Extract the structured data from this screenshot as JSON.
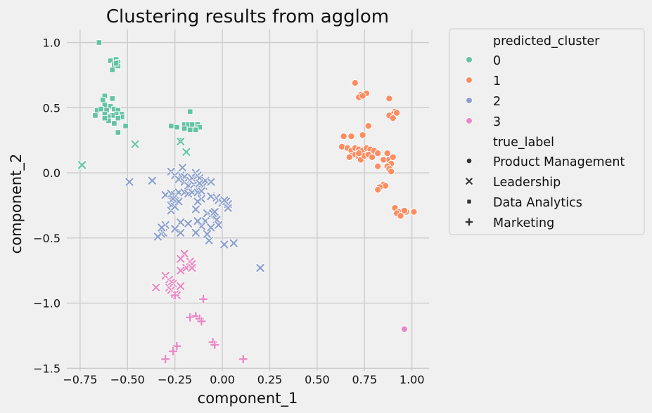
{
  "chart_data": {
    "type": "scatter",
    "title": "Clustering results from agglom",
    "xlabel": "component_1",
    "ylabel": "component_2",
    "xlim": [
      -0.82,
      1.09
    ],
    "ylim": [
      -1.52,
      1.1
    ],
    "grid": true,
    "legend_placement": "outside-right",
    "x_ticks": [
      -0.75,
      -0.5,
      -0.25,
      0.0,
      0.25,
      0.5,
      0.75,
      1.0
    ],
    "x_tick_labels": [
      "−0.75",
      "−0.50",
      "−0.25",
      "0.00",
      "0.25",
      "0.50",
      "0.75",
      "1.00"
    ],
    "y_ticks": [
      1.0,
      0.5,
      0.0,
      -0.5,
      -1.0,
      -1.5
    ],
    "y_tick_labels": [
      "1.0",
      "0.5",
      "0.0",
      "−0.5",
      "−1.0",
      "−1.5"
    ],
    "legend": {
      "hue_title": "predicted_cluster",
      "hue_entries": [
        {
          "label": "0",
          "color": "#66c2a5"
        },
        {
          "label": "1",
          "color": "#fc8d62"
        },
        {
          "label": "2",
          "color": "#8da0cb"
        },
        {
          "label": "3",
          "color": "#e78ac3"
        }
      ],
      "style_title": "true_label",
      "style_entries": [
        {
          "label": "Product Management",
          "marker": "circle"
        },
        {
          "label": "Leadership",
          "marker": "x"
        },
        {
          "label": "Data Analytics",
          "marker": "square"
        },
        {
          "label": "Marketing",
          "marker": "plus"
        }
      ]
    },
    "series": [
      {
        "cluster": "0",
        "marker": "square",
        "color": "#66c2a5",
        "points": [
          [
            -0.65,
            1.0
          ],
          [
            -0.59,
            0.86
          ],
          [
            -0.56,
            0.87
          ],
          [
            -0.55,
            0.85
          ],
          [
            -0.57,
            0.83
          ],
          [
            -0.55,
            0.82
          ],
          [
            -0.56,
            0.84
          ],
          [
            -0.58,
            0.79
          ],
          [
            -0.62,
            0.59
          ],
          [
            -0.63,
            0.56
          ],
          [
            -0.58,
            0.57
          ],
          [
            -0.62,
            0.52
          ],
          [
            -0.59,
            0.51
          ],
          [
            -0.66,
            0.48
          ],
          [
            -0.64,
            0.49
          ],
          [
            -0.61,
            0.48
          ],
          [
            -0.57,
            0.49
          ],
          [
            -0.55,
            0.48
          ],
          [
            -0.53,
            0.45
          ],
          [
            -0.53,
            0.43
          ],
          [
            -0.56,
            0.45
          ],
          [
            -0.58,
            0.44
          ],
          [
            -0.6,
            0.43
          ],
          [
            -0.62,
            0.45
          ],
          [
            -0.67,
            0.44
          ],
          [
            -0.6,
            0.4
          ],
          [
            -0.57,
            0.38
          ],
          [
            -0.55,
            0.42
          ],
          [
            -0.51,
            0.36
          ],
          [
            -0.55,
            0.31
          ],
          [
            -0.62,
            0.42
          ],
          [
            -0.17,
            0.47
          ],
          [
            -0.27,
            0.36
          ],
          [
            -0.24,
            0.35
          ],
          [
            -0.2,
            0.37
          ],
          [
            -0.18,
            0.37
          ],
          [
            -0.16,
            0.37
          ],
          [
            -0.13,
            0.37
          ],
          [
            -0.12,
            0.35
          ],
          [
            -0.14,
            0.33
          ],
          [
            -0.17,
            0.33
          ],
          [
            -0.2,
            0.34
          ],
          [
            -0.22,
            0.25
          ]
        ]
      },
      {
        "cluster": "0",
        "marker": "x",
        "color": "#66c2a5",
        "points": [
          [
            -0.46,
            0.22
          ],
          [
            -0.22,
            0.24
          ],
          [
            -0.19,
            0.16
          ],
          [
            -0.74,
            0.06
          ]
        ]
      },
      {
        "cluster": "1",
        "marker": "circle",
        "color": "#fc8d62",
        "points": [
          [
            0.7,
            0.69
          ],
          [
            0.76,
            0.61
          ],
          [
            0.73,
            0.6
          ],
          [
            0.72,
            0.58
          ],
          [
            0.74,
            0.59
          ],
          [
            0.88,
            0.57
          ],
          [
            0.91,
            0.47
          ],
          [
            0.9,
            0.45
          ],
          [
            0.92,
            0.46
          ],
          [
            0.89,
            0.43
          ],
          [
            0.88,
            0.44
          ],
          [
            0.9,
            0.42
          ],
          [
            0.77,
            0.36
          ],
          [
            0.64,
            0.28
          ],
          [
            0.68,
            0.28
          ],
          [
            0.74,
            0.29
          ],
          [
            0.63,
            0.2
          ],
          [
            0.66,
            0.19
          ],
          [
            0.68,
            0.17
          ],
          [
            0.7,
            0.19
          ],
          [
            0.72,
            0.18
          ],
          [
            0.74,
            0.17
          ],
          [
            0.76,
            0.19
          ],
          [
            0.78,
            0.18
          ],
          [
            0.8,
            0.17
          ],
          [
            0.82,
            0.15
          ],
          [
            0.68,
            0.13
          ],
          [
            0.7,
            0.14
          ],
          [
            0.72,
            0.12
          ],
          [
            0.73,
            0.1
          ],
          [
            0.75,
            0.13
          ],
          [
            0.77,
            0.14
          ],
          [
            0.67,
            0.12
          ],
          [
            0.72,
            0.15
          ],
          [
            0.79,
            0.12
          ],
          [
            0.82,
            0.05
          ],
          [
            0.85,
            0.1
          ],
          [
            0.87,
            0.15
          ],
          [
            0.88,
            0.1
          ],
          [
            0.9,
            0.12
          ],
          [
            0.89,
            0.07
          ],
          [
            0.87,
            0.05
          ],
          [
            0.88,
            0.03
          ],
          [
            0.89,
            0.01
          ],
          [
            0.85,
            -0.09
          ],
          [
            0.86,
            -0.1
          ],
          [
            0.83,
            -0.11
          ],
          [
            0.82,
            -0.13
          ],
          [
            0.91,
            -0.27
          ],
          [
            0.93,
            -0.3
          ],
          [
            0.92,
            -0.31
          ],
          [
            0.94,
            -0.33
          ],
          [
            0.97,
            -0.3
          ],
          [
            0.96,
            -0.29
          ],
          [
            1.01,
            -0.3
          ]
        ]
      },
      {
        "cluster": "2",
        "marker": "x",
        "color": "#8da0cb",
        "points": [
          [
            -0.27,
            0.01
          ],
          [
            -0.21,
            0.04
          ],
          [
            -0.22,
            -0.02
          ],
          [
            -0.25,
            -0.02
          ],
          [
            -0.23,
            -0.05
          ],
          [
            -0.2,
            -0.03
          ],
          [
            -0.2,
            -0.07
          ],
          [
            -0.17,
            -0.06
          ],
          [
            -0.16,
            -0.04
          ],
          [
            -0.14,
            0.0
          ],
          [
            -0.13,
            -0.02
          ],
          [
            -0.12,
            -0.04
          ],
          [
            -0.18,
            -0.1
          ],
          [
            -0.15,
            -0.09
          ],
          [
            -0.13,
            -0.12
          ],
          [
            -0.1,
            -0.1
          ],
          [
            -0.09,
            -0.06
          ],
          [
            -0.12,
            -0.08
          ],
          [
            -0.3,
            -0.17
          ],
          [
            -0.27,
            -0.16
          ],
          [
            -0.25,
            -0.17
          ],
          [
            -0.23,
            -0.15
          ],
          [
            -0.2,
            -0.15
          ],
          [
            -0.18,
            -0.16
          ],
          [
            -0.16,
            -0.15
          ],
          [
            -0.13,
            -0.15
          ],
          [
            -0.11,
            -0.14
          ],
          [
            -0.06,
            -0.18
          ],
          [
            -0.03,
            -0.19
          ],
          [
            -0.02,
            -0.21
          ],
          [
            0.0,
            -0.23
          ],
          [
            0.02,
            -0.22
          ],
          [
            0.03,
            -0.24
          ],
          [
            0.03,
            -0.27
          ],
          [
            0.01,
            -0.21
          ],
          [
            -0.06,
            -0.07
          ],
          [
            -0.26,
            -0.22
          ],
          [
            -0.27,
            -0.25
          ],
          [
            -0.27,
            -0.29
          ],
          [
            -0.25,
            -0.26
          ],
          [
            -0.23,
            -0.22
          ],
          [
            -0.26,
            -0.2
          ],
          [
            -0.49,
            -0.07
          ],
          [
            -0.37,
            -0.06
          ],
          [
            -0.11,
            -0.2
          ],
          [
            -0.13,
            -0.22
          ],
          [
            -0.14,
            -0.28
          ],
          [
            -0.08,
            -0.31
          ],
          [
            -0.09,
            -0.37
          ],
          [
            -0.06,
            -0.33
          ],
          [
            -0.05,
            -0.31
          ],
          [
            -0.04,
            -0.3
          ],
          [
            -0.03,
            -0.36
          ],
          [
            -0.02,
            -0.4
          ],
          [
            -0.06,
            -0.42
          ],
          [
            -0.07,
            -0.52
          ],
          [
            -0.08,
            -0.47
          ],
          [
            -0.11,
            -0.41
          ],
          [
            -0.13,
            -0.37
          ],
          [
            -0.18,
            -0.39
          ],
          [
            -0.22,
            -0.38
          ],
          [
            -0.22,
            -0.46
          ],
          [
            -0.25,
            -0.43
          ],
          [
            -0.3,
            -0.4
          ],
          [
            -0.31,
            -0.46
          ],
          [
            -0.32,
            -0.47
          ],
          [
            -0.34,
            -0.49
          ],
          [
            -0.32,
            -0.42
          ],
          [
            -0.14,
            -0.46
          ],
          [
            0.01,
            -0.55
          ],
          [
            0.06,
            -0.54
          ],
          [
            0.2,
            -0.73
          ]
        ]
      },
      {
        "cluster": "3",
        "marker": "x",
        "color": "#e78ac3",
        "points": [
          [
            -0.2,
            -0.62
          ],
          [
            -0.22,
            -0.66
          ],
          [
            -0.17,
            -0.68
          ],
          [
            -0.16,
            -0.7
          ],
          [
            -0.19,
            -0.73
          ],
          [
            -0.22,
            -0.75
          ],
          [
            -0.16,
            -0.73
          ],
          [
            -0.3,
            -0.79
          ],
          [
            -0.28,
            -0.82
          ],
          [
            -0.27,
            -0.84
          ],
          [
            -0.26,
            -0.85
          ],
          [
            -0.35,
            -0.88
          ],
          [
            -0.28,
            -0.88
          ],
          [
            -0.27,
            -0.9
          ],
          [
            -0.25,
            -0.93
          ],
          [
            -0.24,
            -0.94
          ],
          [
            -0.22,
            -0.87
          ]
        ]
      },
      {
        "cluster": "3",
        "marker": "plus",
        "color": "#e78ac3",
        "points": [
          [
            -0.25,
            -0.94
          ],
          [
            -0.1,
            -0.97
          ],
          [
            -0.17,
            -1.11
          ],
          [
            -0.14,
            -1.1
          ],
          [
            -0.12,
            -1.12
          ],
          [
            -0.11,
            -1.14
          ],
          [
            -0.05,
            -1.3
          ],
          [
            -0.04,
            -1.32
          ],
          [
            -0.24,
            -1.33
          ],
          [
            -0.26,
            -1.37
          ],
          [
            -0.3,
            -1.43
          ],
          [
            0.11,
            -1.43
          ]
        ]
      },
      {
        "cluster": "3",
        "marker": "circle",
        "color": "#e78ac3",
        "points": [
          [
            0.96,
            -1.2
          ]
        ]
      }
    ]
  }
}
